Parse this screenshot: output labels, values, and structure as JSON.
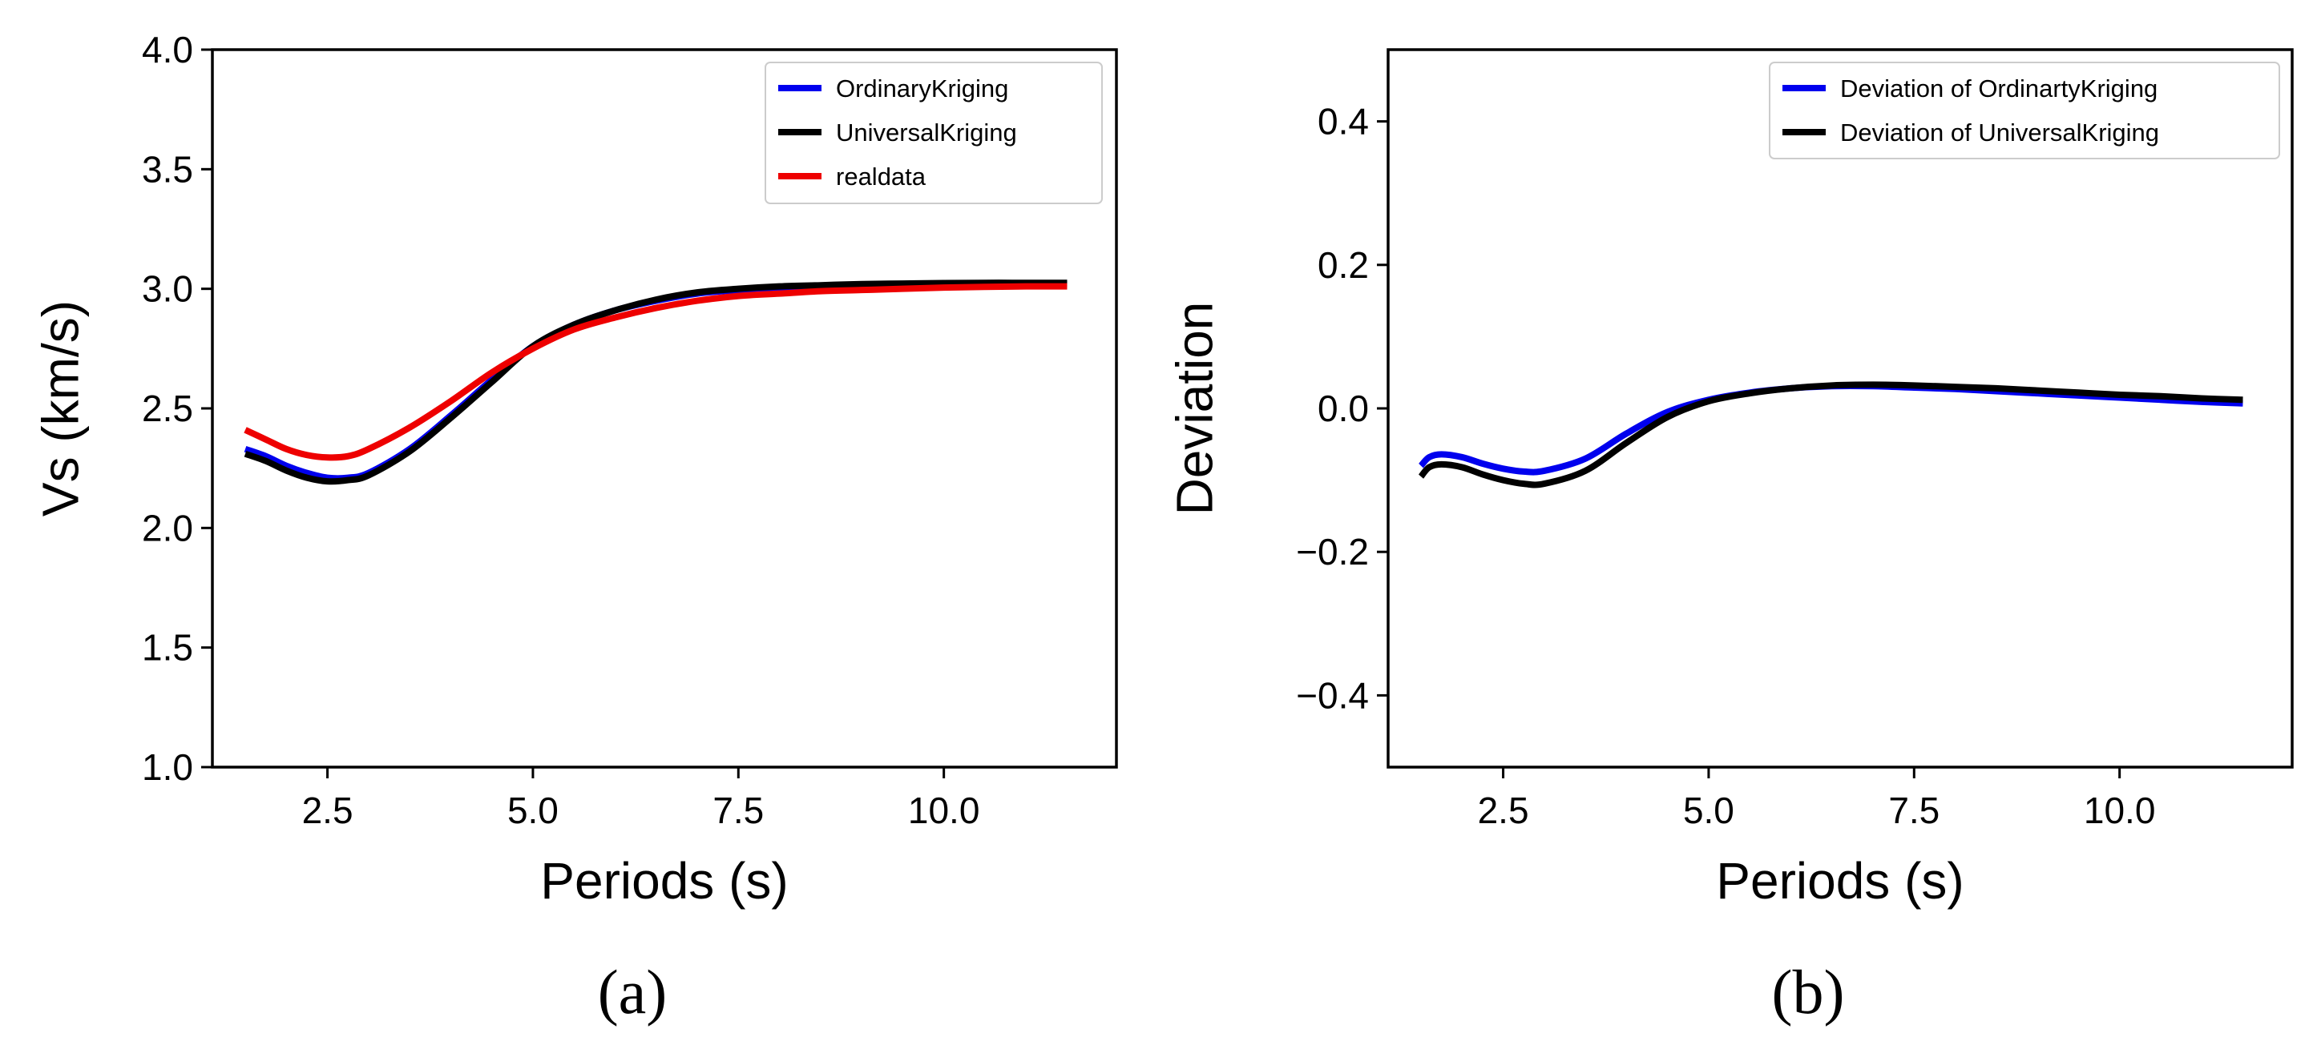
{
  "chart_data": [
    {
      "type": "line",
      "id": "a",
      "caption": "(a)",
      "xlabel": "Periods (s)",
      "ylabel": "Vs (km/s)",
      "xlim": [
        1.1,
        12.1
      ],
      "ylim": [
        1.0,
        4.0
      ],
      "xticks": [
        2.5,
        5.0,
        7.5,
        10.0
      ],
      "xtick_labels": [
        "2.5",
        "5.0",
        "7.5",
        "10.0"
      ],
      "yticks": [
        1.0,
        1.5,
        2.0,
        2.5,
        3.0,
        3.5,
        4.0
      ],
      "ytick_labels": [
        "1.0",
        "1.5",
        "2.0",
        "2.5",
        "3.0",
        "3.5",
        "4.0"
      ],
      "legend_position": "top-right",
      "x": [
        1.5,
        1.75,
        2.0,
        2.25,
        2.5,
        2.75,
        3.0,
        3.5,
        4.0,
        4.5,
        5.0,
        5.5,
        6.0,
        6.5,
        7.0,
        7.5,
        8.0,
        8.5,
        9.0,
        9.5,
        10.0,
        10.5,
        11.0,
        11.5
      ],
      "series": [
        {
          "name": "OrdinaryKriging",
          "color": "#0000ee",
          "values": [
            2.33,
            2.3,
            2.26,
            2.23,
            2.21,
            2.21,
            2.23,
            2.33,
            2.47,
            2.62,
            2.76,
            2.85,
            2.91,
            2.95,
            2.98,
            2.995,
            3.005,
            3.01,
            3.015,
            3.018,
            3.02,
            3.02,
            3.02,
            3.02
          ]
        },
        {
          "name": "UniversalKriging",
          "color": "#000000",
          "values": [
            2.31,
            2.28,
            2.24,
            2.21,
            2.195,
            2.2,
            2.22,
            2.32,
            2.46,
            2.61,
            2.76,
            2.85,
            2.91,
            2.955,
            2.985,
            3.0,
            3.01,
            3.015,
            3.02,
            3.022,
            3.024,
            3.025,
            3.025,
            3.025
          ]
        },
        {
          "name": "realdata",
          "color": "#ee0000",
          "values": [
            2.41,
            2.37,
            2.33,
            2.305,
            2.295,
            2.3,
            2.33,
            2.42,
            2.53,
            2.65,
            2.75,
            2.83,
            2.88,
            2.92,
            2.95,
            2.97,
            2.98,
            2.99,
            2.995,
            3.0,
            3.005,
            3.008,
            3.01,
            3.01
          ]
        }
      ]
    },
    {
      "type": "line",
      "id": "b",
      "caption": "(b)",
      "xlabel": "Periods (s)",
      "ylabel": "Deviation",
      "xlim": [
        1.1,
        12.1
      ],
      "ylim": [
        -0.5,
        0.5
      ],
      "xticks": [
        2.5,
        5.0,
        7.5,
        10.0
      ],
      "xtick_labels": [
        "2.5",
        "5.0",
        "7.5",
        "10.0"
      ],
      "yticks": [
        -0.4,
        -0.2,
        0.0,
        0.2,
        0.4
      ],
      "ytick_labels": [
        "−0.4",
        "−0.2",
        "0.0",
        "0.2",
        "0.4"
      ],
      "legend_position": "top-right",
      "x": [
        1.5,
        1.6,
        1.75,
        2.0,
        2.25,
        2.5,
        2.75,
        3.0,
        3.5,
        4.0,
        4.5,
        5.0,
        5.5,
        6.0,
        6.5,
        7.0,
        7.5,
        8.0,
        8.5,
        9.0,
        9.5,
        10.0,
        10.5,
        11.0,
        11.5
      ],
      "series": [
        {
          "name": "Deviation of OrdinartyKriging",
          "color": "#0000ee",
          "values": [
            -0.08,
            -0.068,
            -0.064,
            -0.068,
            -0.077,
            -0.084,
            -0.088,
            -0.087,
            -0.07,
            -0.035,
            -0.005,
            0.012,
            0.022,
            0.028,
            0.031,
            0.031,
            0.029,
            0.027,
            0.024,
            0.021,
            0.018,
            0.015,
            0.012,
            0.009,
            0.007
          ]
        },
        {
          "name": "Deviation of UniversalKriging",
          "color": "#000000",
          "values": [
            -0.095,
            -0.082,
            -0.078,
            -0.082,
            -0.092,
            -0.1,
            -0.105,
            -0.105,
            -0.087,
            -0.048,
            -0.012,
            0.01,
            0.021,
            0.028,
            0.032,
            0.033,
            0.032,
            0.03,
            0.028,
            0.025,
            0.022,
            0.019,
            0.017,
            0.014,
            0.012
          ]
        }
      ]
    }
  ]
}
